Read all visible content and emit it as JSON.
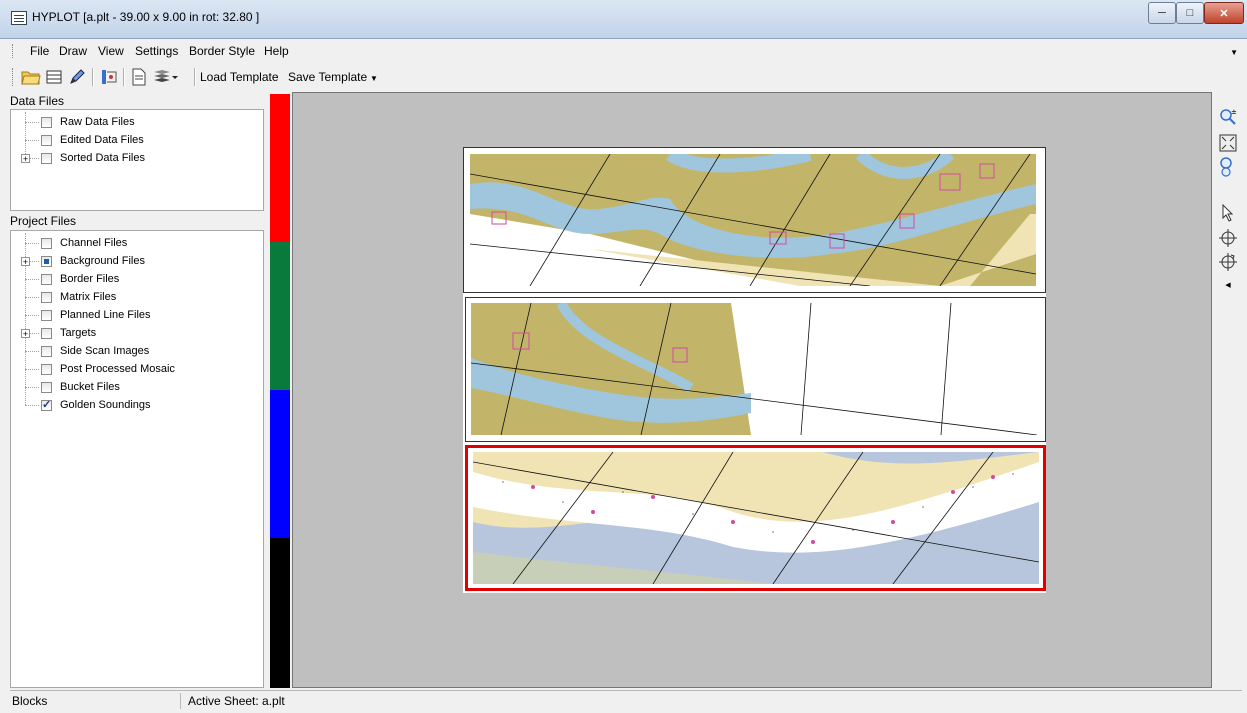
{
  "window": {
    "title": "HYPLOT [a.plt - 39.00 x 9.00 in  rot: 32.80 ]"
  },
  "menu": {
    "items": [
      "File",
      "Draw",
      "View",
      "Settings",
      "Border Style",
      "Help"
    ]
  },
  "toolbar": {
    "load_template": "Load Template",
    "save_template": "Save Template"
  },
  "data_files": {
    "header": "Data Files",
    "items": [
      {
        "label": "Raw Data Files",
        "checked": false,
        "expandable": false
      },
      {
        "label": "Edited Data Files",
        "checked": false,
        "expandable": false
      },
      {
        "label": "Sorted Data Files",
        "checked": false,
        "expandable": true
      }
    ]
  },
  "project_files": {
    "header": "Project Files",
    "items": [
      {
        "label": "Channel Files",
        "state": "unchecked",
        "expandable": false
      },
      {
        "label": "Background Files",
        "state": "partial",
        "expandable": true
      },
      {
        "label": "Border Files",
        "state": "unchecked",
        "expandable": false
      },
      {
        "label": "Matrix Files",
        "state": "unchecked",
        "expandable": false
      },
      {
        "label": "Planned Line Files",
        "state": "unchecked",
        "expandable": false
      },
      {
        "label": "Targets",
        "state": "unchecked",
        "expandable": true
      },
      {
        "label": "Side Scan Images",
        "state": "unchecked",
        "expandable": false
      },
      {
        "label": "Post Processed Mosaic",
        "state": "unchecked",
        "expandable": false
      },
      {
        "label": "Bucket Files",
        "state": "unchecked",
        "expandable": false
      },
      {
        "label": "Golden Soundings",
        "state": "checked",
        "expandable": false
      }
    ]
  },
  "color_swatches": [
    "#ff0000",
    "#0a7a3c",
    "#0000ff",
    "#000000"
  ],
  "status": {
    "left": "Blocks",
    "active_sheet": "Active Sheet: a.plt"
  },
  "colors": {
    "active_block_border": "#e00000",
    "canvas": "#bfbfbf",
    "water": "#9fc6dc",
    "land": "#c2b56a",
    "shoal": "#f1e4b4"
  }
}
